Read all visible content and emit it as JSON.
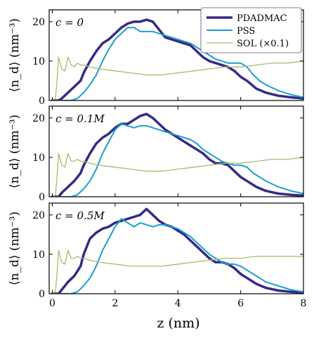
{
  "figure": {
    "x_axis_label": "z (nm)",
    "y_axis_label": "⟨n_d⟩ (nm⁻³)",
    "panel_labels": [
      "c = 0",
      "c = 0.1M",
      "c = 0.5M"
    ]
  },
  "legend": [
    {
      "name": "PDADMAC",
      "color": "#352a87"
    },
    {
      "name": "PSS",
      "color": "#1a9fcf"
    },
    {
      "name": "SOL (×0.1)",
      "color": "#a9b96a"
    }
  ],
  "chart_data": [
    {
      "type": "line",
      "panel_label": "c = 0",
      "xlabel": "z (nm)",
      "ylabel": "⟨n_d⟩ (nm⁻³)",
      "xlim": [
        -0.1,
        8
      ],
      "ylim": [
        0,
        23
      ],
      "xticks": [
        0,
        2,
        4,
        6,
        8
      ],
      "yticks": [
        0,
        10,
        20
      ],
      "legend_position": "top-right",
      "series": [
        {
          "name": "PDADMAC",
          "color": "#352a87",
          "width": 3.5,
          "x": [
            0,
            0.2,
            0.3,
            0.5,
            0.7,
            0.9,
            1.0,
            1.2,
            1.4,
            1.6,
            1.8,
            2.0,
            2.2,
            2.4,
            2.6,
            2.8,
            3.0,
            3.2,
            3.4,
            3.6,
            3.8,
            4.0,
            4.2,
            4.4,
            4.6,
            4.8,
            5.0,
            5.2,
            5.4,
            5.6,
            5.8,
            6.0,
            6.2,
            6.5,
            6.8,
            7.2,
            7.6,
            8.0
          ],
          "y": [
            0,
            0,
            0.5,
            2,
            3.5,
            5,
            7,
            10,
            12.5,
            14.5,
            15.5,
            17,
            18.5,
            19.5,
            20,
            20,
            20.5,
            20,
            18,
            16,
            15.5,
            15,
            14.5,
            14,
            12.5,
            11,
            10,
            9.5,
            9,
            8.5,
            7.5,
            6,
            5,
            3,
            2,
            1.2,
            0.8,
            0.5
          ]
        },
        {
          "name": "PSS",
          "color": "#1a9fcf",
          "width": 2,
          "x": [
            0,
            0.6,
            0.8,
            1.0,
            1.2,
            1.4,
            1.6,
            1.8,
            2.0,
            2.2,
            2.4,
            2.6,
            2.8,
            3.0,
            3.2,
            3.4,
            3.6,
            3.8,
            4.0,
            4.2,
            4.4,
            4.6,
            4.8,
            5.0,
            5.2,
            5.4,
            5.6,
            5.8,
            6.0,
            6.2,
            6.4,
            6.6,
            6.8,
            7.2,
            7.6,
            8.0
          ],
          "y": [
            0,
            0,
            0.5,
            2,
            4,
            6.5,
            10,
            13,
            15.5,
            17,
            18.5,
            18.5,
            17.5,
            17.5,
            17.5,
            17,
            16.5,
            16,
            15.5,
            15,
            14.5,
            13.5,
            12.5,
            11.5,
            10.5,
            10,
            9.5,
            9.5,
            9.5,
            8.5,
            6.5,
            5,
            4,
            2.5,
            1.5,
            0.8
          ]
        },
        {
          "name": "SOL (×0.1)",
          "color": "#a9b96a",
          "width": 1.3,
          "x": [
            0,
            0.1,
            0.15,
            0.2,
            0.3,
            0.4,
            0.5,
            0.6,
            0.7,
            0.8,
            0.9,
            1.0,
            1.2,
            1.5,
            2.0,
            2.5,
            3.0,
            3.5,
            4.0,
            4.5,
            5.0,
            5.5,
            6.0,
            6.5,
            7.0,
            7.5,
            8.0
          ],
          "y": [
            0,
            0.5,
            5,
            11,
            8,
            7.5,
            11,
            9,
            8.5,
            9.5,
            9,
            9,
            8.5,
            8,
            7.5,
            7,
            6.5,
            6.5,
            7,
            7.5,
            8,
            8.5,
            8.5,
            9,
            9.5,
            9.5,
            10
          ]
        }
      ]
    },
    {
      "type": "line",
      "panel_label": "c = 0.1M",
      "xlabel": "z (nm)",
      "ylabel": "⟨n_d⟩ (nm⁻³)",
      "xlim": [
        -0.1,
        8
      ],
      "ylim": [
        0,
        23
      ],
      "xticks": [
        0,
        2,
        4,
        6,
        8
      ],
      "yticks": [
        0,
        10,
        20
      ],
      "series": [
        {
          "name": "PDADMAC",
          "color": "#352a87",
          "width": 3.5,
          "x": [
            0,
            0.2,
            0.3,
            0.5,
            0.7,
            0.9,
            1.0,
            1.2,
            1.4,
            1.6,
            1.8,
            2.0,
            2.2,
            2.4,
            2.6,
            2.8,
            3.0,
            3.2,
            3.4,
            3.6,
            3.8,
            4.0,
            4.2,
            4.4,
            4.6,
            4.8,
            5.0,
            5.2,
            5.4,
            5.6,
            5.8,
            6.0,
            6.2,
            6.5,
            6.8,
            7.2,
            7.6,
            8.0
          ],
          "y": [
            0,
            0,
            1,
            2.5,
            4,
            6,
            8,
            11,
            13.5,
            15,
            16,
            17.5,
            18.5,
            18.5,
            19.5,
            20.5,
            21,
            20,
            18.5,
            17,
            16,
            15,
            14,
            13,
            12,
            11,
            9.5,
            8.5,
            8.5,
            8,
            6.5,
            5,
            4,
            2.5,
            1.5,
            0.8,
            0.5,
            0.3
          ]
        },
        {
          "name": "PSS",
          "color": "#1a9fcf",
          "width": 2,
          "x": [
            0,
            0.6,
            0.8,
            1.0,
            1.2,
            1.4,
            1.6,
            1.8,
            2.0,
            2.2,
            2.4,
            2.6,
            2.8,
            3.0,
            3.2,
            3.4,
            3.6,
            3.8,
            4.0,
            4.2,
            4.4,
            4.6,
            4.8,
            5.0,
            5.2,
            5.4,
            5.6,
            5.8,
            6.0,
            6.2,
            6.4,
            6.6,
            6.8,
            7.2,
            7.6,
            8.0
          ],
          "y": [
            0,
            0,
            0.5,
            2,
            4,
            7,
            11,
            14,
            17,
            18.5,
            18,
            17.5,
            18,
            18,
            17.5,
            17,
            16.5,
            16,
            15.5,
            15,
            14.5,
            13.5,
            12,
            11,
            10,
            9,
            8.5,
            8,
            8,
            7.5,
            6,
            5,
            4,
            2.5,
            1.5,
            0.8
          ]
        },
        {
          "name": "SOL (×0.1)",
          "color": "#a9b96a",
          "width": 1.3,
          "x": [
            0,
            0.1,
            0.15,
            0.2,
            0.3,
            0.4,
            0.5,
            0.6,
            0.7,
            0.8,
            0.9,
            1.0,
            1.2,
            1.5,
            2.0,
            2.5,
            3.0,
            3.5,
            4.0,
            4.5,
            5.0,
            5.5,
            6.0,
            6.5,
            7.0,
            7.5,
            8.0
          ],
          "y": [
            0,
            0.5,
            5,
            11,
            8,
            7.5,
            11,
            9,
            9,
            9.5,
            9,
            9,
            8.5,
            8,
            7.5,
            7,
            6.5,
            6.5,
            7,
            7.5,
            8,
            8.5,
            8.5,
            9,
            9.5,
            9.5,
            10
          ]
        }
      ]
    },
    {
      "type": "line",
      "panel_label": "c = 0.5M",
      "xlabel": "z (nm)",
      "ylabel": "⟨n_d⟩ (nm⁻³)",
      "xlim": [
        -0.1,
        8
      ],
      "ylim": [
        0,
        23
      ],
      "xticks": [
        0,
        2,
        4,
        6,
        8
      ],
      "yticks": [
        0,
        10,
        20
      ],
      "series": [
        {
          "name": "PDADMAC",
          "color": "#352a87",
          "width": 3.5,
          "x": [
            0,
            0.2,
            0.3,
            0.5,
            0.7,
            0.9,
            1.0,
            1.2,
            1.4,
            1.6,
            1.8,
            2.0,
            2.2,
            2.4,
            2.6,
            2.8,
            3.0,
            3.2,
            3.4,
            3.6,
            3.8,
            4.0,
            4.2,
            4.4,
            4.6,
            4.8,
            5.0,
            5.2,
            5.4,
            5.6,
            5.8,
            6.0,
            6.2,
            6.5,
            6.8,
            7.2,
            7.6,
            8.0
          ],
          "y": [
            0,
            0,
            1,
            3,
            4.5,
            7,
            10,
            14,
            15.5,
            16.5,
            17,
            18,
            18.5,
            19,
            19.5,
            20,
            21.5,
            20,
            18.5,
            17.5,
            17,
            16,
            15,
            13.5,
            12,
            10.5,
            9,
            8,
            8,
            7.5,
            6.5,
            5,
            4,
            2.5,
            1.5,
            0.8,
            0.5,
            0.3
          ]
        },
        {
          "name": "PSS",
          "color": "#1a9fcf",
          "width": 2,
          "x": [
            0,
            0.6,
            0.8,
            1.0,
            1.2,
            1.4,
            1.6,
            1.8,
            2.0,
            2.2,
            2.4,
            2.6,
            2.8,
            3.0,
            3.2,
            3.4,
            3.6,
            3.8,
            4.0,
            4.2,
            4.4,
            4.6,
            4.8,
            5.0,
            5.2,
            5.4,
            5.6,
            5.8,
            6.0,
            6.2,
            6.4,
            6.6,
            6.8,
            7.2,
            7.6,
            8.0
          ],
          "y": [
            0,
            0,
            0.5,
            2,
            4,
            7,
            11,
            14,
            17,
            19,
            18,
            17,
            18,
            17.5,
            17,
            17.5,
            17.5,
            17,
            16.5,
            15.5,
            14.5,
            13,
            11.5,
            10,
            9,
            8,
            7.5,
            7.5,
            7,
            6,
            5,
            4,
            3,
            2,
            1,
            0.5
          ]
        },
        {
          "name": "SOL (×0.1)",
          "color": "#a9b96a",
          "width": 1.3,
          "x": [
            0,
            0.1,
            0.15,
            0.2,
            0.3,
            0.4,
            0.5,
            0.6,
            0.7,
            0.8,
            0.9,
            1.0,
            1.2,
            1.5,
            2.0,
            2.5,
            3.0,
            3.5,
            4.0,
            4.5,
            5.0,
            5.5,
            6.0,
            6.5,
            7.0,
            7.5,
            8.0
          ],
          "y": [
            0,
            0.5,
            5,
            11,
            8,
            7.5,
            11,
            9,
            9,
            9.5,
            9,
            9,
            8.5,
            8,
            7.5,
            7,
            7,
            7,
            7.5,
            8,
            8.5,
            9,
            9,
            9.5,
            9.5,
            9.5,
            9.5
          ]
        }
      ]
    }
  ]
}
